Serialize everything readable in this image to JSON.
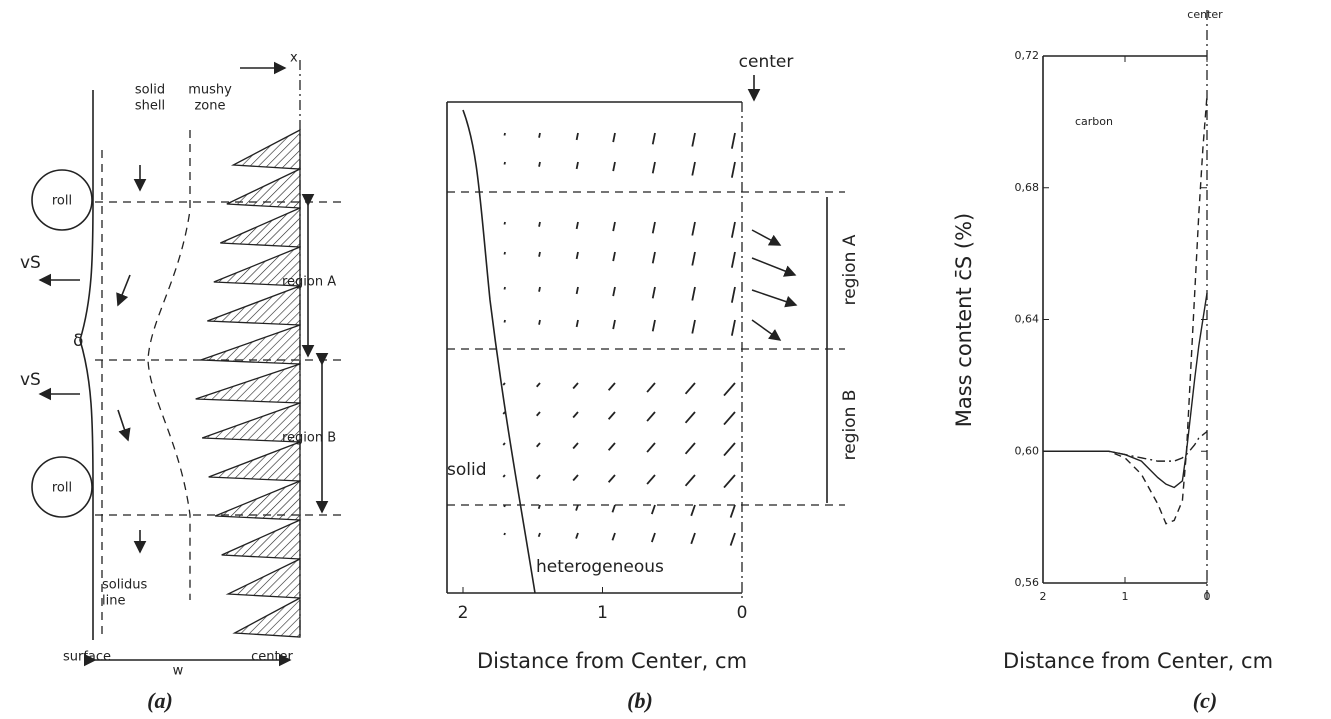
{
  "panel_a": {
    "caption": "(a)",
    "x": "x",
    "solid_shell": [
      "solid",
      "shell"
    ],
    "mushy_zone": [
      "mushy",
      "zone"
    ],
    "roll_top": "roll",
    "roll_bottom": "roll",
    "vs_top": "vS",
    "vs_bottom": "vS",
    "delta": "δ",
    "region_a": "region A",
    "region_b": "region B",
    "solidus_line": [
      "solidus",
      "line"
    ],
    "surface": "surface",
    "w": "w",
    "center": "center"
  },
  "panel_b": {
    "caption": "(b)",
    "center": "center",
    "region_a": "region A",
    "region_b": "region B",
    "solid": "solid",
    "heterogeneous": "heterogeneous",
    "xlabel": "Distance from Center, cm",
    "xlim": [
      2,
      0
    ],
    "xticks": [
      2,
      1,
      0
    ]
  },
  "chart_data": {
    "type": "line",
    "caption": "(c)",
    "annotation": "carbon",
    "center": "center",
    "xlabel": "Distance from Center, cm",
    "ylabel": "Mass content c̄S (%)",
    "x": [
      2,
      1.5,
      1.2,
      1.0,
      0.8,
      0.6,
      0.5,
      0.4,
      0.3,
      0.25,
      0.15,
      0.1,
      0.05,
      0
    ],
    "xlim": [
      2,
      0
    ],
    "xticks": [
      2,
      1,
      0
    ],
    "ylim": [
      0.56,
      0.72
    ],
    "yticks": [
      {
        "value": 0.56,
        "label": "0,56"
      },
      {
        "value": 0.6,
        "label": "0,60"
      },
      {
        "value": 0.64,
        "label": "0,64"
      },
      {
        "value": 0.68,
        "label": "0,68"
      },
      {
        "value": 0.72,
        "label": "0,72"
      }
    ],
    "series": [
      {
        "color": "#222222",
        "dash": "solid",
        "values": [
          0.6,
          0.6,
          0.6,
          0.599,
          0.597,
          0.592,
          0.59,
          0.589,
          0.591,
          0.6,
          0.622,
          0.632,
          0.64,
          0.648
        ]
      },
      {
        "color": "#222222",
        "dash": "dashed",
        "values": [
          0.6,
          0.6,
          0.6,
          0.598,
          0.593,
          0.584,
          0.578,
          0.579,
          0.585,
          0.6,
          0.648,
          0.672,
          0.692,
          0.708
        ]
      },
      {
        "color": "#222222",
        "dash": "dashdot",
        "values": [
          0.6,
          0.6,
          0.6,
          0.599,
          0.598,
          0.597,
          0.597,
          0.597,
          0.598,
          0.599,
          0.602,
          0.604,
          0.605,
          0.606
        ]
      }
    ]
  }
}
